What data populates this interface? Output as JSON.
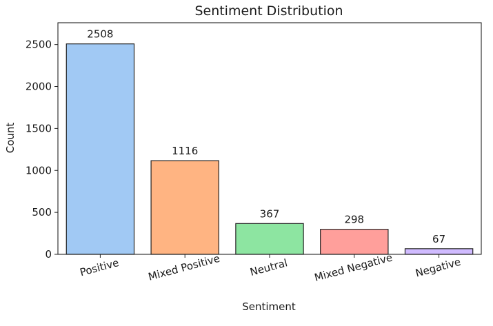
{
  "chart_data": {
    "type": "bar",
    "title": "Sentiment Distribution",
    "xlabel": "Sentiment",
    "ylabel": "Count",
    "categories": [
      "Positive",
      "Mixed Positive",
      "Neutral",
      "Mixed Negative",
      "Negative"
    ],
    "values": [
      2508,
      1116,
      367,
      298,
      67
    ],
    "data_labels": [
      "2508",
      "1116",
      "367",
      "298",
      "67"
    ],
    "ylim": [
      0,
      2760
    ],
    "yticks": [
      0,
      500,
      1000,
      1500,
      2000,
      2500
    ],
    "colors": [
      "#a1c9f4",
      "#ffb482",
      "#8de5a1",
      "#ff9f9b",
      "#d0bbff"
    ],
    "bar_edge_color": "#222222",
    "grid": false,
    "legend": "none",
    "x_tick_rotation_deg": -15
  }
}
